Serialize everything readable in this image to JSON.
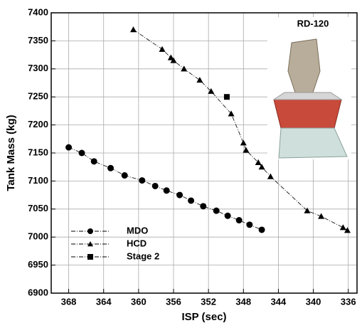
{
  "chart_data": {
    "type": "line",
    "xlabel": "ISP (sec)",
    "ylabel": "Tank Mass (kg)",
    "xlim": [
      370,
      335
    ],
    "ylim": [
      6900,
      7400
    ],
    "xticks": [
      368,
      364,
      360,
      356,
      352,
      348,
      344,
      340,
      336
    ],
    "yticks": [
      6900,
      6950,
      7000,
      7050,
      7100,
      7150,
      7200,
      7250,
      7300,
      7350,
      7400
    ],
    "grid": true,
    "legend_position": "lower left",
    "inset_label": "RD-120",
    "series": [
      {
        "name": "MDO",
        "color": "#000000",
        "marker": "circle",
        "x": [
          368,
          366.5,
          365.1,
          363.2,
          361.6,
          359.6,
          358.1,
          356.8,
          355.3,
          354.0,
          352.6,
          351.1,
          349.8,
          348.5,
          347.3,
          345.9
        ],
        "values": [
          7160,
          7150,
          7135,
          7123,
          7110,
          7101,
          7091,
          7083,
          7075,
          7065,
          7055,
          7047,
          7038,
          7030,
          7022,
          7013
        ]
      },
      {
        "name": "HCD",
        "color": "#000000",
        "marker": "triangle",
        "x": [
          360.6,
          357.3,
          356.3,
          356.0,
          354.8,
          353.0,
          351.7,
          349.4,
          348.0,
          347.7,
          346.3,
          345.9,
          344.9,
          340.7,
          339.1,
          336.6,
          336.1
        ],
        "values": [
          7370,
          7335,
          7320,
          7315,
          7300,
          7280,
          7260,
          7220,
          7168,
          7155,
          7133,
          7125,
          7108,
          7047,
          7037,
          7017,
          7012
        ]
      },
      {
        "name": "Stage 2",
        "color": "#000000",
        "marker": "square",
        "x": [
          349.9
        ],
        "values": [
          7250
        ]
      }
    ]
  }
}
